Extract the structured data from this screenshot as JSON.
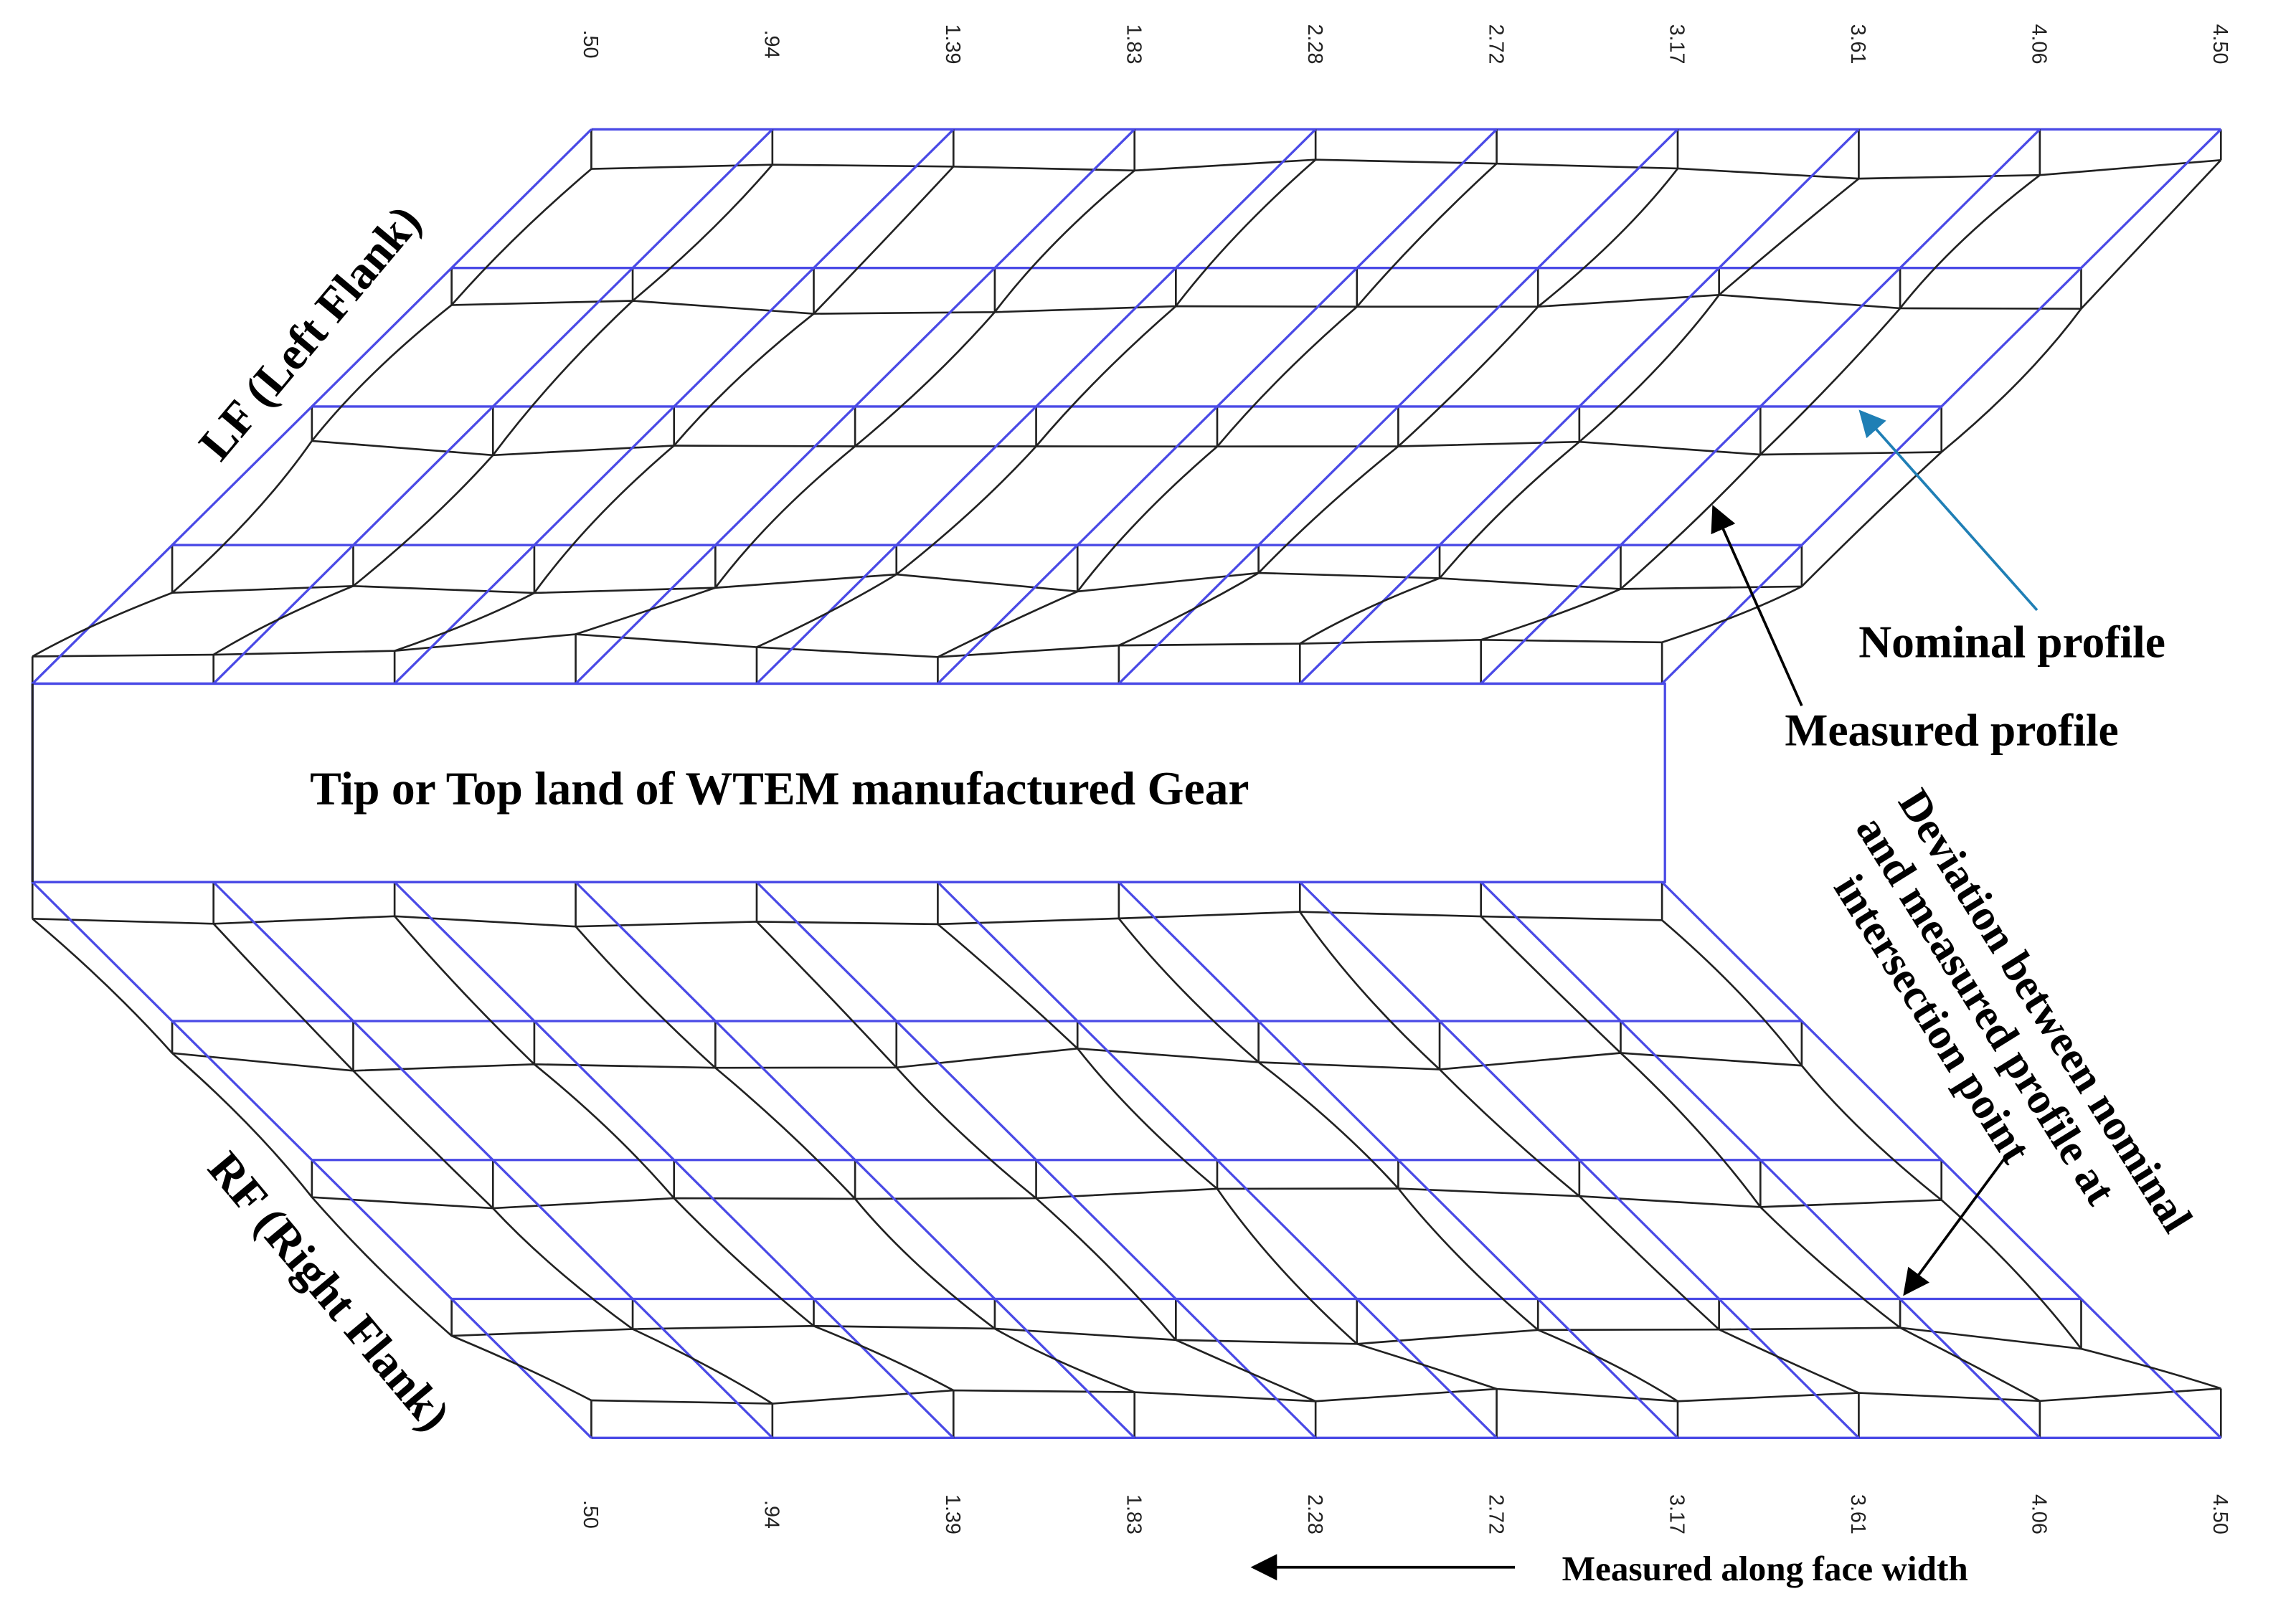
{
  "top_axis": {
    "labels": [
      ".50",
      ".94",
      "1.39",
      "1.83",
      "2.28",
      "2.72",
      "3.17",
      "3.61",
      "4.06",
      "4.50"
    ]
  },
  "bottom_axis": {
    "labels": [
      ".50",
      ".94",
      "1.39",
      "1.83",
      "2.28",
      "2.72",
      "3.17",
      "3.61",
      "4.06",
      "4.50"
    ]
  },
  "flanks": {
    "left": "LF (Left Flank)",
    "right": "RF (Right Flank)"
  },
  "tip_label": "Tip or Top land of WTEM manufactured Gear",
  "annotations": {
    "nominal": "Nominal profile",
    "measured": "Measured profile",
    "deviation": [
      "Deviation between nominal",
      "and measured profile at",
      "intersection point"
    ],
    "face_width": "Measured  along face width"
  }
}
